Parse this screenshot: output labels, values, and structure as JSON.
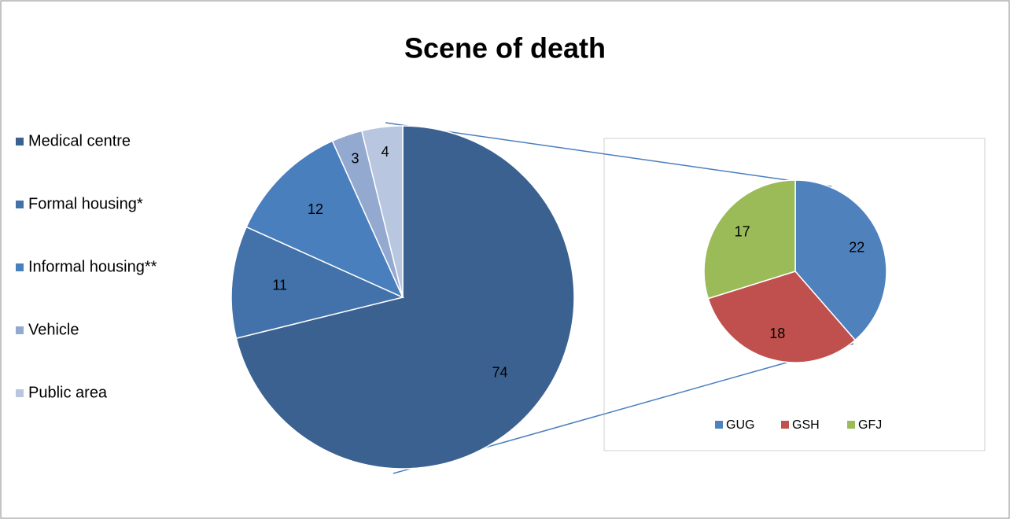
{
  "chart_data": [
    {
      "type": "pie",
      "title": "Scene of death",
      "categories": [
        "Medical centre",
        "Formal housing*",
        "Informal housing**",
        "Vehicle",
        "Public area"
      ],
      "values": [
        74,
        11,
        12,
        3,
        4
      ],
      "colors": [
        "#3b6190",
        "#4272a9",
        "#4a7fbd",
        "#94a9d0",
        "#b9c6e0"
      ],
      "legend": "left"
    },
    {
      "type": "pie",
      "categories": [
        "GUG",
        "GSH",
        "GFJ"
      ],
      "values": [
        22,
        18,
        17
      ],
      "colors": [
        "#4f81bd",
        "#c0504d",
        "#9bbb59"
      ],
      "legend": "bottom"
    }
  ]
}
